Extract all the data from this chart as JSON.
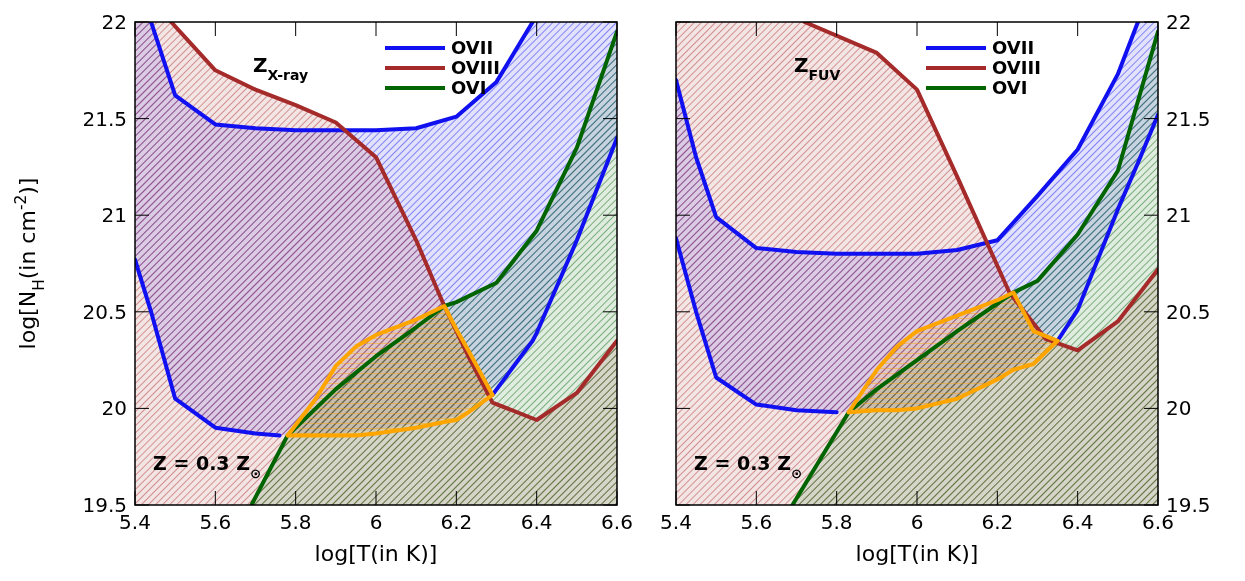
{
  "chart_data": [
    {
      "type": "line",
      "xlabel": "log[T(in K)]",
      "ylabel": "log[N$_{H}$(in cm$^{-2}$)]",
      "annotations": [
        "Z$_{X-ray}$",
        "Z = 0.3 Z$_{⊙}$"
      ],
      "xlim": [
        5.4,
        6.6
      ],
      "ylim": [
        19.5,
        22
      ],
      "xticks": [
        5.4,
        5.6,
        5.8,
        6,
        6.2,
        6.4,
        6.6
      ],
      "yticks": [
        19.5,
        20,
        20.5,
        21,
        21.5,
        22
      ],
      "legend": "top right",
      "grid": false,
      "marker": "none",
      "line_style": "solid",
      "series": [
        {
          "name": "OVII",
          "color": "#1010f0",
          "x": [
            5.4,
            5.44,
            5.5,
            5.6,
            5.7,
            5.8,
            5.9,
            6.0,
            6.1,
            6.2,
            6.3,
            6.39,
            6.4,
            6.5,
            6.6
          ],
          "values": [
            null,
            22,
            21.62,
            21.47,
            21.45,
            21.44,
            21.44,
            21.44,
            21.45,
            21.51,
            21.69,
            22,
            null,
            null,
            null
          ],
          "upper": [
            22,
            22,
            21.62,
            21.47,
            21.45,
            21.44,
            21.44,
            21.44,
            21.45,
            21.51,
            21.69,
            22,
            22,
            22,
            22
          ],
          "lower": [
            20.77,
            20.5,
            20.05,
            19.9,
            19.87,
            19.86,
            19.87,
            19.89,
            19.92,
            19.96,
            20.12,
            20.35,
            20.39,
            20.87,
            21.4
          ]
        },
        {
          "name": "OVIII",
          "color": "#a52a2a",
          "x": [
            5.4,
            5.49,
            5.6,
            5.7,
            5.8,
            5.9,
            6.0,
            6.1,
            6.17,
            6.23,
            6.29,
            6.4,
            6.5,
            6.6
          ],
          "values": [
            null,
            22,
            21.75,
            21.65,
            21.57,
            21.48,
            21.3,
            20.87,
            20.53,
            20.27,
            20.03,
            19.94,
            20.08,
            20.35
          ],
          "upper": [
            22,
            22,
            21.75,
            21.65,
            21.57,
            21.48,
            21.3,
            20.87,
            20.53,
            20.27,
            20.03,
            19.94,
            20.08,
            20.35
          ],
          "lower": [
            19.5,
            19.5,
            19.5,
            19.5,
            19.5,
            19.5,
            19.5,
            19.5,
            19.5,
            19.5,
            19.5,
            19.5,
            19.5,
            19.5
          ]
        },
        {
          "name": "OVI",
          "color": "#006400",
          "x": [
            5.69,
            5.78,
            5.9,
            6.0,
            6.1,
            6.17,
            6.2,
            6.3,
            6.4,
            6.5,
            6.6
          ],
          "values": [
            19.5,
            19.86,
            20.1,
            20.27,
            20.42,
            20.53,
            20.55,
            20.65,
            20.92,
            21.35,
            21.95
          ],
          "upper": [
            19.5,
            19.86,
            20.1,
            20.27,
            20.42,
            20.53,
            20.55,
            20.65,
            20.92,
            21.35,
            21.95
          ],
          "lower": [
            19.5,
            19.5,
            19.5,
            19.5,
            19.5,
            19.5,
            19.5,
            19.5,
            19.5,
            19.5,
            19.5
          ]
        },
        {
          "color": "#1010f0",
          "x": [
            5.4,
            5.44,
            5.5,
            5.6,
            5.7,
            5.76,
            5.9,
            6.0,
            6.1,
            6.2,
            6.29,
            6.39,
            6.4,
            6.5,
            6.6
          ],
          "values": [
            20.77,
            20.5,
            20.05,
            19.9,
            19.87,
            19.86,
            null,
            null,
            null,
            null,
            20.07,
            20.35,
            20.39,
            20.87,
            21.4
          ]
        },
        {
          "color": "#ffa500",
          "x": [
            5.78,
            5.85,
            5.9,
            5.95,
            6.0,
            6.1,
            6.17,
            6.2,
            6.23,
            6.29
          ],
          "values": [
            19.86,
            20.05,
            20.22,
            20.32,
            20.38,
            20.46,
            20.53,
            20.41,
            20.3,
            20.07
          ],
          "upper": [
            19.86,
            20.05,
            20.22,
            20.32,
            20.38,
            20.46,
            20.53,
            20.41,
            20.3,
            20.07
          ],
          "lower": [
            19.86,
            19.86,
            19.86,
            19.86,
            19.87,
            19.9,
            19.93,
            19.94,
            19.98,
            20.07
          ]
        },
        {
          "color": "#ffa500",
          "x": [
            5.78,
            5.85,
            5.9,
            5.95,
            6.0,
            6.1,
            6.17,
            6.2,
            6.23,
            6.29
          ],
          "values": [
            19.86,
            19.86,
            19.86,
            19.86,
            19.87,
            19.9,
            19.93,
            19.94,
            19.98,
            20.07
          ]
        }
      ]
    },
    {
      "type": "line",
      "xlabel": "log[T(in K)]",
      "annotations": [
        "Z$_{FUV}$",
        "Z = 0.3 Z$_{⊙}$"
      ],
      "xlim": [
        5.4,
        6.6
      ],
      "ylim": [
        19.5,
        22
      ],
      "xticks": [
        5.4,
        5.6,
        5.8,
        6,
        6.2,
        6.4,
        6.6
      ],
      "yticks": [
        19.5,
        20,
        20.5,
        21,
        21.5,
        22
      ],
      "legend": "top right",
      "grid": false,
      "marker": "none",
      "line_style": "solid",
      "series": [
        {
          "name": "OVII",
          "color": "#1010f0",
          "x": [
            5.4,
            5.45,
            5.5,
            5.6,
            5.7,
            5.8,
            5.9,
            6.0,
            6.1,
            6.2,
            6.3,
            6.4,
            6.5,
            6.55,
            6.6
          ],
          "values": [
            21.7,
            21.3,
            20.99,
            20.83,
            20.81,
            20.8,
            20.8,
            20.8,
            20.82,
            20.87,
            21.1,
            21.34,
            21.73,
            22,
            null
          ],
          "upper": [
            21.7,
            21.3,
            20.99,
            20.83,
            20.81,
            20.8,
            20.8,
            20.8,
            20.82,
            20.87,
            21.1,
            21.34,
            21.73,
            22,
            22
          ],
          "lower": [
            20.88,
            20.5,
            20.16,
            20.02,
            19.99,
            19.98,
            19.98,
            20.0,
            20.05,
            20.15,
            20.28,
            20.51,
            21.03,
            21.27,
            21.52
          ]
        },
        {
          "name": "OVIII",
          "color": "#a52a2a",
          "x": [
            5.4,
            5.72,
            5.9,
            6.0,
            6.1,
            6.23,
            6.32,
            6.4,
            6.5,
            6.6
          ],
          "values": [
            null,
            22,
            21.84,
            21.65,
            21.2,
            20.6,
            20.36,
            20.3,
            20.45,
            20.72
          ],
          "upper": [
            22,
            22,
            21.84,
            21.65,
            21.2,
            20.6,
            20.36,
            20.3,
            20.45,
            20.72
          ],
          "lower": [
            19.5,
            19.5,
            19.5,
            19.5,
            19.5,
            19.5,
            19.5,
            19.5,
            19.5,
            19.5
          ]
        },
        {
          "name": "OVI",
          "color": "#006400",
          "x": [
            5.69,
            5.83,
            5.9,
            6.0,
            6.1,
            6.24,
            6.3,
            6.4,
            6.5,
            6.6
          ],
          "values": [
            19.5,
            19.98,
            20.1,
            20.25,
            20.4,
            20.6,
            20.66,
            20.9,
            21.23,
            21.95
          ],
          "upper": [
            19.5,
            19.98,
            20.1,
            20.25,
            20.4,
            20.6,
            20.66,
            20.9,
            21.23,
            21.95
          ],
          "lower": [
            19.5,
            19.5,
            19.5,
            19.5,
            19.5,
            19.5,
            19.5,
            19.5,
            19.5,
            19.5
          ]
        },
        {
          "color": "#1010f0",
          "x": [
            5.4,
            5.45,
            5.5,
            5.6,
            5.7,
            5.8,
            5.9,
            6.0,
            6.1,
            6.2,
            6.35,
            6.4,
            6.5,
            6.55,
            6.6
          ],
          "values": [
            20.88,
            20.5,
            20.16,
            20.02,
            19.99,
            19.98,
            null,
            null,
            null,
            null,
            20.35,
            20.51,
            21.03,
            21.27,
            21.52
          ]
        },
        {
          "color": "#ffa500",
          "x": [
            5.83,
            5.9,
            5.95,
            6.0,
            6.1,
            6.2,
            6.24,
            6.29,
            6.35
          ],
          "values": [
            19.98,
            20.2,
            20.32,
            20.4,
            20.48,
            20.56,
            20.6,
            20.4,
            20.35
          ],
          "upper": [
            19.98,
            20.2,
            20.32,
            20.4,
            20.48,
            20.56,
            20.6,
            20.4,
            20.35
          ],
          "lower": [
            19.98,
            19.99,
            19.99,
            20.0,
            20.05,
            20.15,
            20.2,
            20.23,
            20.35
          ]
        },
        {
          "color": "#ffa500",
          "x": [
            5.83,
            5.9,
            5.95,
            6.0,
            6.1,
            6.2,
            6.24,
            6.29,
            6.35
          ],
          "values": [
            19.98,
            19.99,
            19.99,
            20.0,
            20.05,
            20.15,
            20.2,
            20.23,
            20.35
          ]
        }
      ]
    }
  ]
}
